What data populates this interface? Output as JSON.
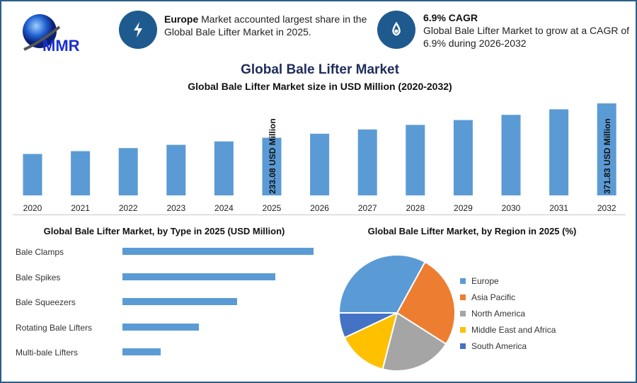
{
  "logo": {
    "text": "MMR"
  },
  "highlights": [
    {
      "icon": "lightning-icon",
      "bold": "Europe",
      "text": " Market accounted largest share in the Global Bale Lifter Market in 2025."
    },
    {
      "icon": "growth-drop-icon",
      "bold": "6.9% CAGR",
      "text": "Global Bale Lifter Market to grow at a CAGR of 6.9% during 2026-2032"
    }
  ],
  "main_title": "Global Bale Lifter Market",
  "colors": {
    "accent": "#1f5a8f",
    "title": "#1f2d5c",
    "bar": "#5b9bd5"
  },
  "chart_data": [
    {
      "type": "bar",
      "title": "Global Bale Lifter Market size in USD Million (2020-2032)",
      "categories": [
        "2020",
        "2021",
        "2022",
        "2023",
        "2024",
        "2025",
        "2026",
        "2027",
        "2028",
        "2029",
        "2030",
        "2031",
        "2032"
      ],
      "values": [
        167.3,
        178.8,
        191.1,
        204.3,
        218.1,
        233.08,
        249.2,
        266.4,
        284.8,
        304.4,
        325.4,
        347.9,
        371.83
      ],
      "data_labels": {
        "2025": "233.08 USD Million",
        "2032": "371.83 USD Million"
      },
      "ylim": [
        0,
        371.83
      ],
      "grid": false
    },
    {
      "type": "bar",
      "orientation": "horizontal",
      "title": "Global Bale Lifter Market, by Type in 2025 (USD Million)",
      "categories": [
        "Bale Clamps",
        "Bale Spikes",
        "Bale Squeezers",
        "Rotating Bale Lifters",
        "Multi-bale Lifters"
      ],
      "values": [
        100,
        80,
        60,
        40,
        20
      ]
    },
    {
      "type": "pie",
      "title": "Global Bale Lifter Market, by Region in 2025 (%)",
      "legend": "right",
      "slices": [
        {
          "name": "Europe",
          "value": 33,
          "color": "#5b9bd5"
        },
        {
          "name": "Asia Pacific",
          "value": 26,
          "color": "#ed7d31"
        },
        {
          "name": "North America",
          "value": 20,
          "color": "#a5a5a5"
        },
        {
          "name": "Middle East and Africa",
          "value": 14,
          "color": "#ffc000"
        },
        {
          "name": "South America",
          "value": 7,
          "color": "#4472c4"
        }
      ]
    }
  ]
}
